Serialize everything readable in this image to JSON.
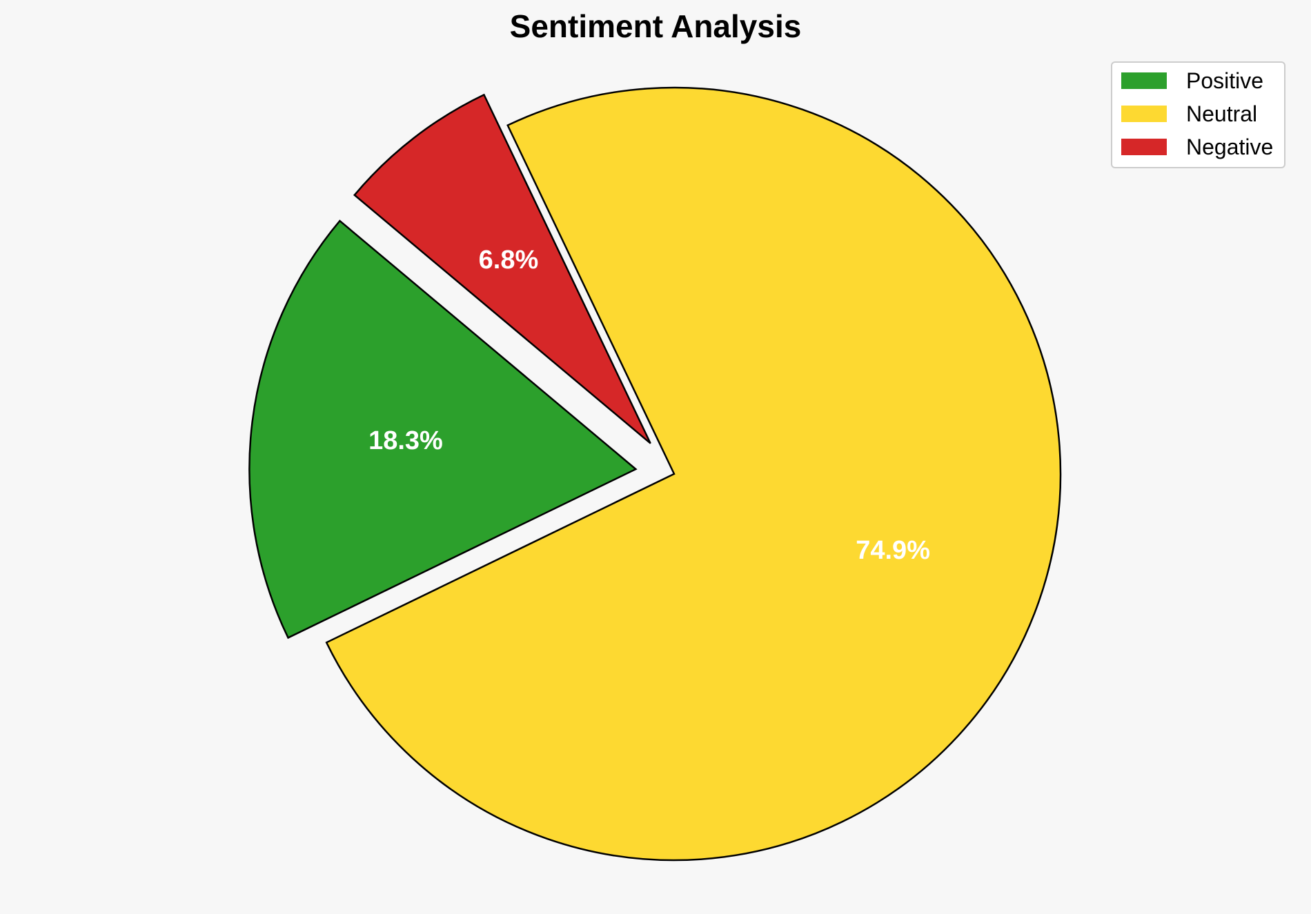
{
  "chart_data": {
    "type": "pie",
    "title": "Sentiment Analysis",
    "categories": [
      "Positive",
      "Neutral",
      "Negative"
    ],
    "values": [
      18.3,
      74.9,
      6.8
    ],
    "labels": [
      "18.3%",
      "74.9%",
      "6.8%"
    ],
    "colors": [
      "#2ca02c",
      "#fdd931",
      "#d62728"
    ],
    "explode": [
      0.1,
      0,
      0.1
    ],
    "start_angle_deg": 140,
    "direction": "counterclockwise",
    "legend": {
      "position": "top-right",
      "entries": [
        "Positive",
        "Neutral",
        "Negative"
      ]
    }
  }
}
